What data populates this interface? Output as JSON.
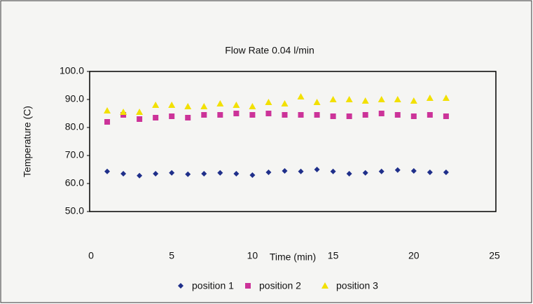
{
  "chart_data": {
    "type": "scatter",
    "title": "Flow Rate 0.04 l/min",
    "x_label": "Time (min)",
    "y_label": "Temperature (C)",
    "x": [
      1,
      2,
      3,
      4,
      5,
      6,
      7,
      8,
      9,
      10,
      11,
      12,
      13,
      14,
      15,
      16,
      17,
      18,
      19,
      20,
      21,
      22
    ],
    "series": [
      {
        "name": "position 1",
        "color": "#1f2f8a",
        "marker": "diamond",
        "values": [
          64.3,
          63.5,
          62.8,
          63.5,
          63.8,
          63.3,
          63.5,
          63.8,
          63.5,
          63.0,
          64.0,
          64.5,
          64.3,
          65.0,
          64.3,
          63.5,
          63.8,
          64.3,
          64.8,
          64.5,
          64.0,
          64.0
        ]
      },
      {
        "name": "position 2",
        "color": "#cc3399",
        "marker": "square",
        "values": [
          82.0,
          84.5,
          83.0,
          83.5,
          84.0,
          83.5,
          84.5,
          84.5,
          85.0,
          84.5,
          85.0,
          84.5,
          84.5,
          84.5,
          84.0,
          84.0,
          84.5,
          85.0,
          84.5,
          84.0,
          84.5,
          84.0
        ]
      },
      {
        "name": "position 3",
        "color": "#f2e000",
        "marker": "triangle",
        "values": [
          86.0,
          85.5,
          85.5,
          88.0,
          88.0,
          87.5,
          87.5,
          88.5,
          88.0,
          87.5,
          89.0,
          88.5,
          91.0,
          89.0,
          90.0,
          90.0,
          89.5,
          90.0,
          90.0,
          89.5,
          90.5,
          90.5
        ]
      }
    ],
    "xlim": [
      0,
      25
    ],
    "xticks": [
      0,
      5,
      10,
      15,
      20,
      25
    ],
    "ylim": [
      50,
      100
    ],
    "yticks": [
      {
        "value": 50,
        "label": "50.0"
      },
      {
        "value": 60,
        "label": "60.0"
      },
      {
        "value": 70,
        "label": "70.0"
      },
      {
        "value": 80,
        "label": "80.0"
      },
      {
        "value": 90,
        "label": "90.0"
      },
      {
        "value": 100,
        "label": "100.0"
      }
    ],
    "legend": "bottom"
  }
}
